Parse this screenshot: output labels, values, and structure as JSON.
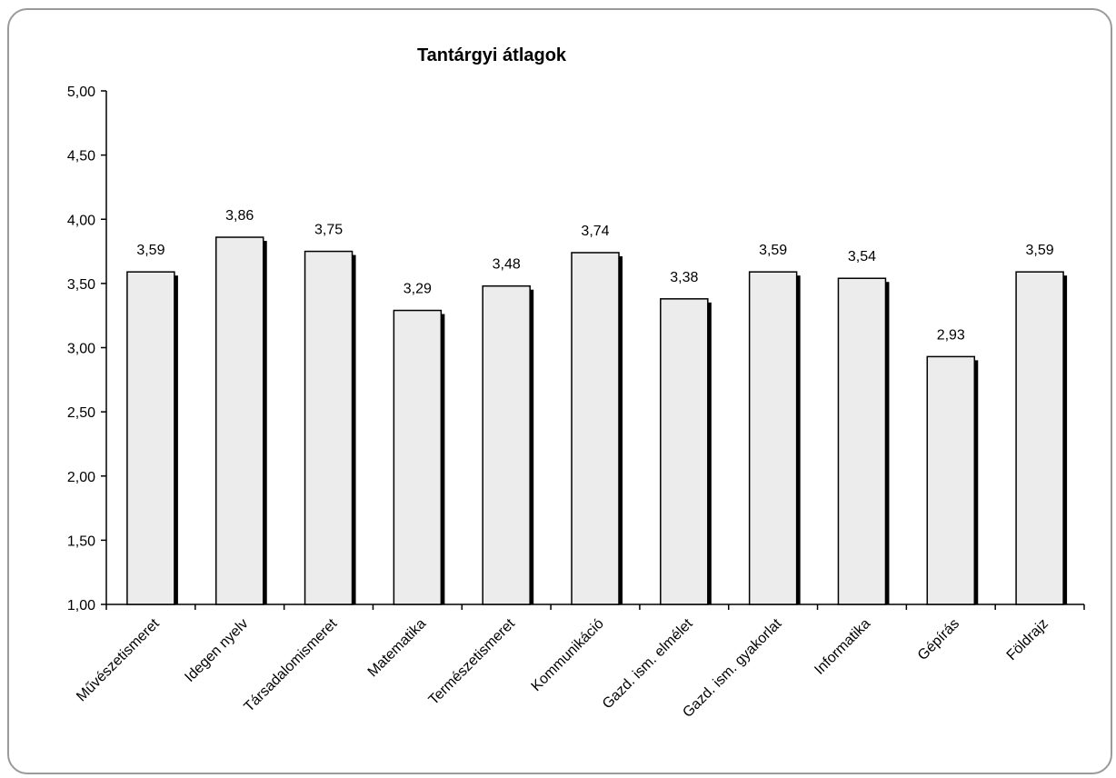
{
  "chart_data": {
    "type": "bar",
    "title": "Tantárgyi átlagok",
    "xlabel": "",
    "ylabel": "",
    "ylim": [
      1.0,
      5.0
    ],
    "yticks": [
      "1,00",
      "1,50",
      "2,00",
      "2,50",
      "3,00",
      "3,50",
      "4,00",
      "4,50",
      "5,00"
    ],
    "categories": [
      "Művészetismeret",
      "Idegen nyelv",
      "Társadalomismeret",
      "Matematika",
      "Természetismeret",
      "Kommunikáció",
      "Gazd. ism. elmélet",
      "Gazd. ism. gyakorlat",
      "Informatika",
      "Gépírás",
      "Földrajz"
    ],
    "values": [
      3.59,
      3.86,
      3.75,
      3.29,
      3.48,
      3.74,
      3.38,
      3.59,
      3.54,
      2.93,
      3.59
    ],
    "value_labels": [
      "3,59",
      "3,86",
      "3,75",
      "3,29",
      "3,48",
      "3,74",
      "3,38",
      "3,59",
      "3,54",
      "2,93",
      "3,59"
    ],
    "grid": false,
    "legend": "none",
    "colors": {
      "bar_fill": "#ececec",
      "bar_stroke": "#000000",
      "bar_shadow": "#000000",
      "frame": "#9a9a9a"
    }
  }
}
